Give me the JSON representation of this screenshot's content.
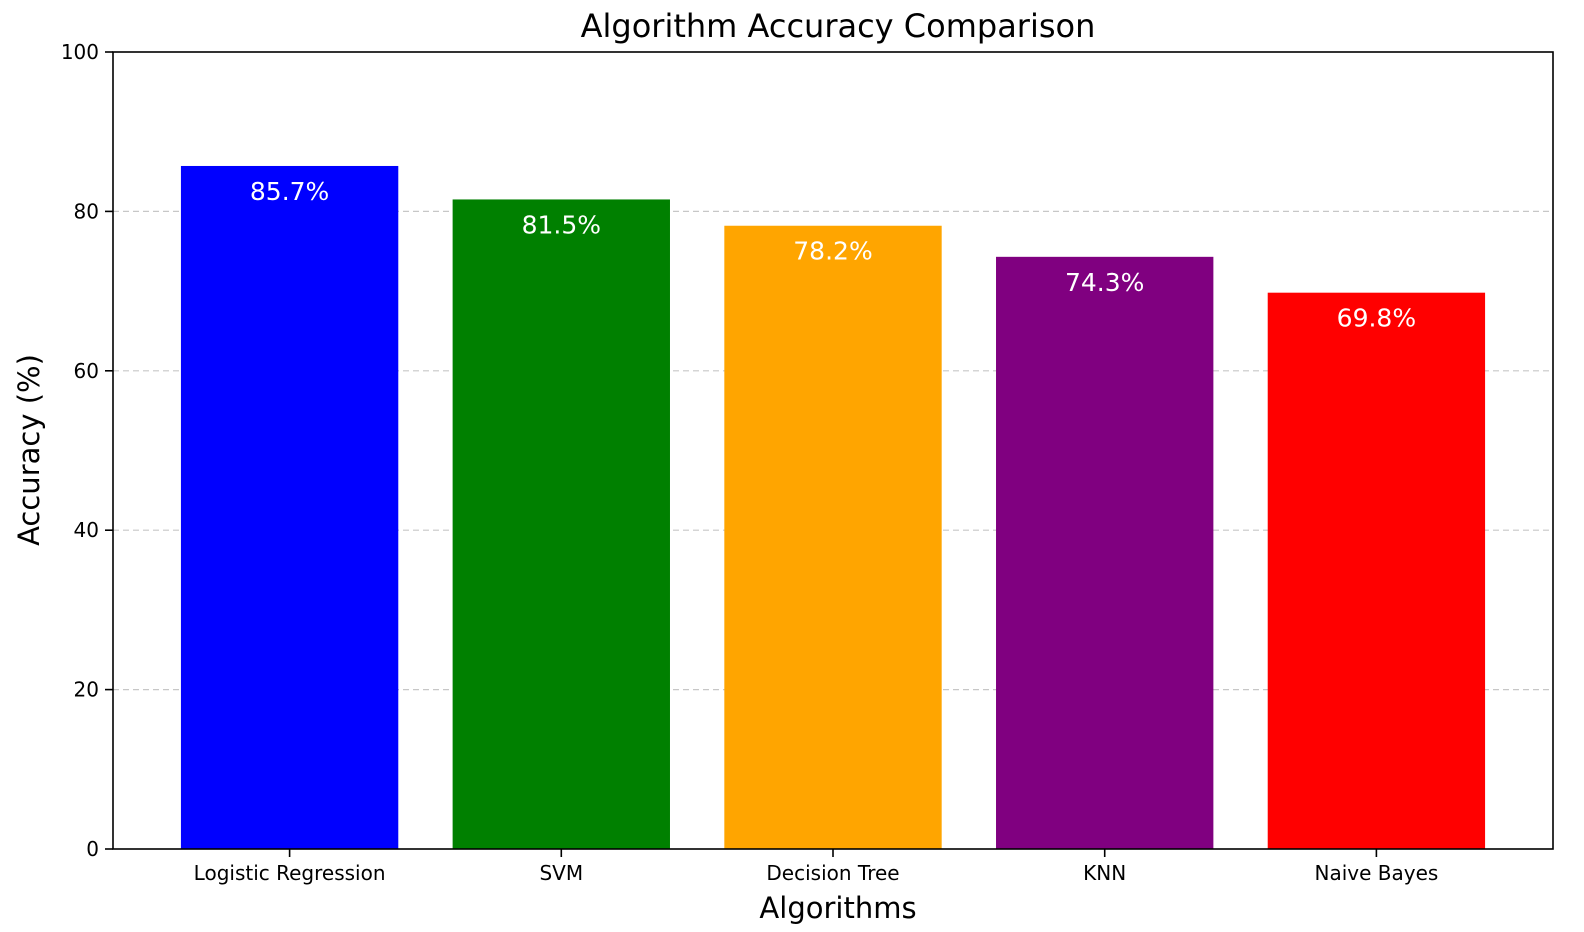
{
  "chart_data": {
    "type": "bar",
    "title": "Algorithm Accuracy Comparison",
    "xlabel": "Algorithms",
    "ylabel": "Accuracy (%)",
    "categories": [
      "Logistic Regression",
      "SVM",
      "Decision Tree",
      "KNN",
      "Naive Bayes"
    ],
    "values": [
      85.7,
      81.5,
      78.2,
      74.3,
      69.8
    ],
    "value_labels": [
      "85.7%",
      "81.5%",
      "78.2%",
      "74.3%",
      "69.8%"
    ],
    "colors": [
      "#0000ff",
      "#008000",
      "#ffa500",
      "#800080",
      "#ff0000"
    ],
    "ylim": [
      0,
      100
    ],
    "yticks": [
      0,
      20,
      40,
      60,
      80,
      100
    ],
    "grid": "y-dashed",
    "legend": "none"
  }
}
